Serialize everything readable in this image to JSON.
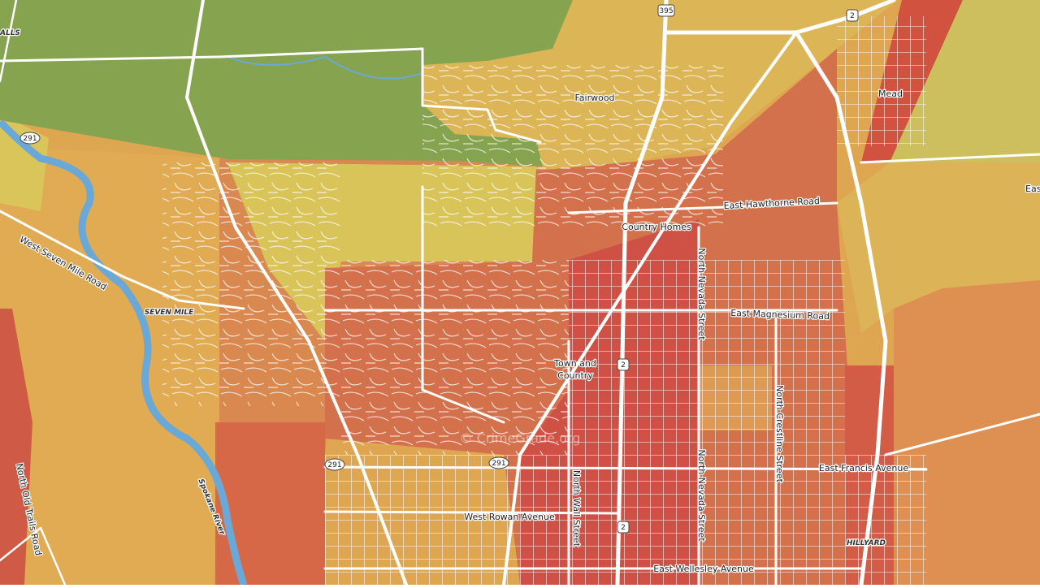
{
  "places": {
    "fairwood": "Fairwood",
    "mead": "Mead",
    "country_homes": "Country Homes",
    "town_and_country": [
      "Town and",
      "Country"
    ],
    "seven_mile": "SEVEN MILE",
    "hillyard": "HILLYARD",
    "falls_partial": "ALLS",
    "east_partial": "Eas"
  },
  "roads": {
    "hawthorne": "East Hawthorne Road",
    "magnesium": "East Magnesium Road",
    "nevada": "North Nevada Street",
    "crestline": "North Crestline Street",
    "francis": "East Francis Avenue",
    "rowan": "West Rowan Avenue",
    "wall": "North Wall Street",
    "wellesley": "East Wellesley Avenue",
    "seven_mile_road": "West Seven Mile Road",
    "old_trails": "North Old Trails Road"
  },
  "water": {
    "spokane_river": "Spokane River"
  },
  "shields": {
    "us395": "395",
    "us2": "2",
    "sr291": "291"
  },
  "watermark": "© CrimeGrade.org"
}
